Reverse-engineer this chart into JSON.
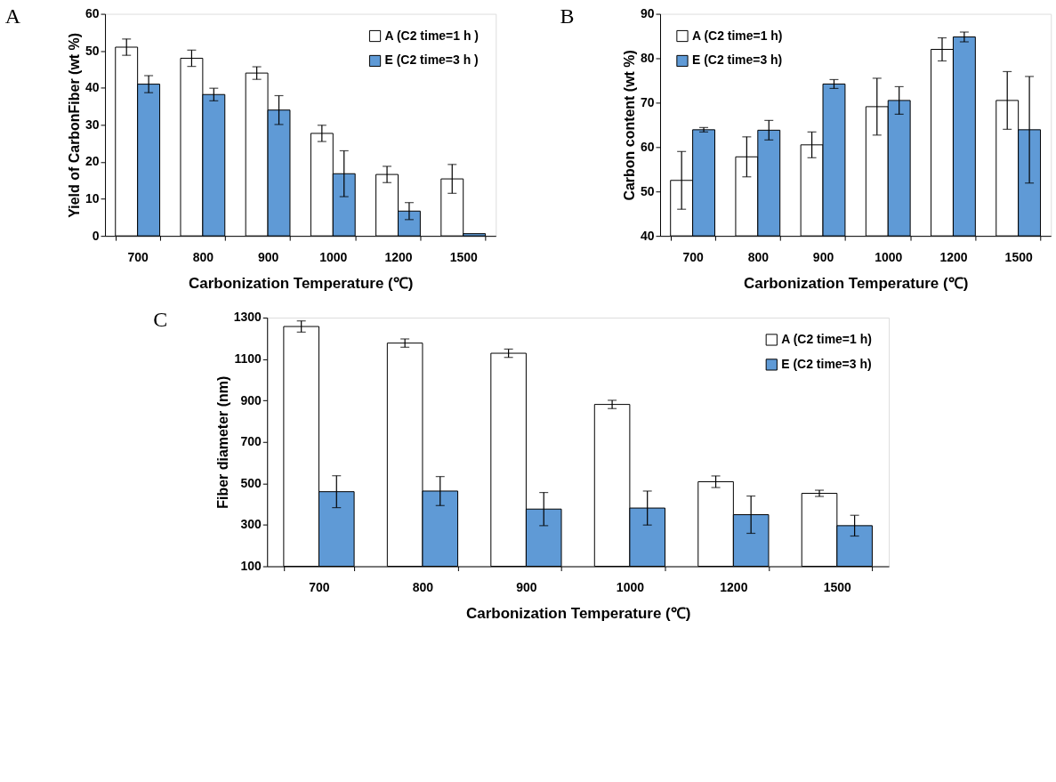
{
  "chart_data": [
    {
      "type": "bar",
      "title": "A",
      "xlabel": "Carbonization Temperature (℃)",
      "ylabel": "Yield of CarbonFiber (wt %)",
      "categories": [
        "700",
        "800",
        "900",
        "1000",
        "1200",
        "1500"
      ],
      "ylim": [
        0,
        60
      ],
      "yticks": [
        0,
        10,
        20,
        30,
        40,
        50,
        60
      ],
      "grid": false,
      "legend": "top right",
      "series": [
        {
          "name": "A (C2 time=1 h )",
          "color": "#ffffff",
          "values": [
            51,
            48,
            44,
            27.7,
            16.6,
            15.4
          ],
          "errors": [
            2.2,
            2.2,
            1.7,
            2.2,
            2.2,
            3.9
          ]
        },
        {
          "name": "E (C2 time=3 h )",
          "color": "#5f9ad6",
          "values": [
            41,
            38.2,
            34,
            16.8,
            6.7,
            0.6
          ],
          "errors": [
            2.3,
            1.7,
            3.9,
            6.2,
            2.3,
            null
          ]
        }
      ]
    },
    {
      "type": "bar",
      "title": "B",
      "xlabel": "Carbonization Temperature (℃)",
      "ylabel": "Carbon content (wt %)",
      "categories": [
        "700",
        "800",
        "900",
        "1000",
        "1200",
        "1500"
      ],
      "ylim": [
        40,
        90
      ],
      "yticks": [
        40,
        50,
        60,
        70,
        80,
        90
      ],
      "grid": false,
      "legend": "top left",
      "series": [
        {
          "name": "A (C2 time=1 h)",
          "color": "#ffffff",
          "values": [
            52.5,
            57.8,
            60.5,
            69.1,
            82,
            70.5
          ],
          "errors": [
            6.5,
            4.5,
            2.9,
            6.4,
            2.6,
            6.5
          ]
        },
        {
          "name": "E (C2 time=3 h)",
          "color": "#5f9ad6",
          "values": [
            63.9,
            63.8,
            74.2,
            70.5,
            84.8,
            63.9
          ],
          "errors": [
            0.5,
            2.2,
            1.0,
            3.1,
            1.1,
            12
          ]
        }
      ]
    },
    {
      "type": "bar",
      "title": "C",
      "xlabel": "Carbonization Temperature (℃)",
      "ylabel": "Fiber diameter (nm)",
      "categories": [
        "700",
        "800",
        "900",
        "1000",
        "1200",
        "1500"
      ],
      "ylim": [
        100,
        1300
      ],
      "yticks": [
        100,
        300,
        500,
        700,
        900,
        1100,
        1300
      ],
      "grid": false,
      "legend": "top right",
      "series": [
        {
          "name": "A (C2 time=1 h)",
          "color": "#ffffff",
          "values": [
            1257,
            1177,
            1128,
            881,
            508,
            452
          ],
          "errors": [
            27,
            20,
            20,
            20,
            28,
            15
          ]
        },
        {
          "name": "E (C2 time=3 h)",
          "color": "#5f9ad6",
          "values": [
            460,
            463,
            376,
            381,
            349,
            296
          ],
          "errors": [
            77,
            70,
            80,
            82,
            90,
            50
          ]
        }
      ]
    }
  ]
}
